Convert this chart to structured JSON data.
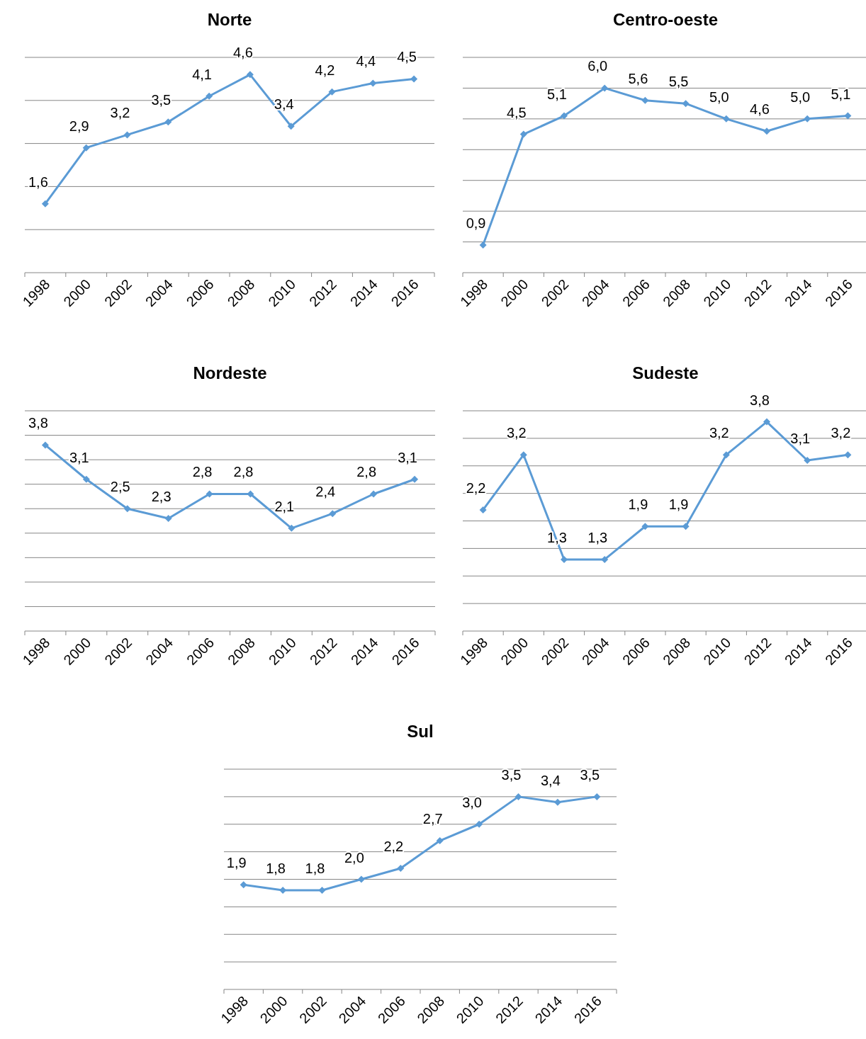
{
  "chart_data": [
    {
      "type": "line",
      "title": "Norte",
      "categories": [
        "1998",
        "2000",
        "2002",
        "2004",
        "2006",
        "2008",
        "2010",
        "2012",
        "2014",
        "2016"
      ],
      "values": [
        1.6,
        2.9,
        3.2,
        3.5,
        4.1,
        4.6,
        3.4,
        4.2,
        4.4,
        4.5
      ],
      "value_labels": [
        "1,6",
        "2,9",
        "3,2",
        "3,5",
        "4,1",
        "4,6",
        "3,4",
        "4,2",
        "4,4",
        "4,5"
      ],
      "color": "#5b9bd5",
      "marker": "diamond",
      "ylim": [
        0,
        5
      ],
      "yticks": [
        {
          "value": 0,
          "label": null
        },
        {
          "value": 1,
          "label": null
        },
        {
          "value": 2,
          "label": null
        },
        {
          "value": 3,
          "label": null
        },
        {
          "value": 4,
          "label": null
        },
        {
          "value": 5,
          "label": null
        }
      ],
      "grid": "y",
      "tick_labels": "x"
    },
    {
      "type": "line",
      "title": "Centro-oeste",
      "categories": [
        "1998",
        "2000",
        "2002",
        "2004",
        "2006",
        "2008",
        "2010",
        "2012",
        "2014",
        "2016"
      ],
      "values": [
        0.9,
        4.5,
        5.1,
        6.0,
        5.6,
        5.5,
        5.0,
        4.6,
        5.0,
        5.1
      ],
      "value_labels": [
        "0,9",
        "4,5",
        "5,1",
        "6,0",
        "5,6",
        "5,5",
        "5,0",
        "4,6",
        "5,0",
        "5,1"
      ],
      "color": "#5b9bd5",
      "marker": "diamond",
      "ylim": [
        0,
        7
      ],
      "yticks": [
        {
          "value": 0,
          "label": null
        },
        {
          "value": 1,
          "label": null
        },
        {
          "value": 2,
          "label": null
        },
        {
          "value": 3,
          "label": null
        },
        {
          "value": 4,
          "label": null
        },
        {
          "value": 5,
          "label": null
        },
        {
          "value": 6,
          "label": null
        },
        {
          "value": 7,
          "label": null
        }
      ],
      "grid": "y",
      "tick_labels": "x"
    },
    {
      "type": "line",
      "title": "Nordeste",
      "categories": [
        "1998",
        "2000",
        "2002",
        "2004",
        "2006",
        "2008",
        "2010",
        "2012",
        "2014",
        "2016"
      ],
      "values": [
        3.8,
        3.1,
        2.5,
        2.3,
        2.8,
        2.8,
        2.1,
        2.4,
        2.8,
        3.1
      ],
      "value_labels": [
        "3,8",
        "3,1",
        "2,5",
        "2,3",
        "2,8",
        "2,8",
        "2,1",
        "2,4",
        "2,8",
        "3,1"
      ],
      "color": "#5b9bd5",
      "marker": "diamond",
      "ylim": [
        0,
        4.5
      ],
      "yticks": [
        {
          "value": 0,
          "label": null
        },
        {
          "value": 0.5,
          "label": null
        },
        {
          "value": 1,
          "label": null
        },
        {
          "value": 1.5,
          "label": null
        },
        {
          "value": 2,
          "label": null
        },
        {
          "value": 2.5,
          "label": null
        },
        {
          "value": 3,
          "label": null
        },
        {
          "value": 3.5,
          "label": null
        },
        {
          "value": 4,
          "label": null
        },
        {
          "value": 4.5,
          "label": null
        }
      ],
      "grid": "y",
      "tick_labels": "x"
    },
    {
      "type": "line",
      "title": "Sudeste",
      "categories": [
        "1998",
        "2000",
        "2002",
        "2004",
        "2006",
        "2008",
        "2010",
        "2012",
        "2014",
        "2016"
      ],
      "values": [
        2.2,
        3.2,
        1.3,
        1.3,
        1.9,
        1.9,
        3.2,
        3.8,
        3.1,
        3.2
      ],
      "value_labels": [
        "2,2",
        "3,2",
        "1,3",
        "1,3",
        "1,9",
        "1,9",
        "3,2",
        "3,8",
        "3,1",
        "3,2"
      ],
      "color": "#5b9bd5",
      "marker": "diamond",
      "ylim": [
        0,
        4
      ],
      "yticks": [
        {
          "value": 0,
          "label": null
        },
        {
          "value": 0.5,
          "label": null
        },
        {
          "value": 1,
          "label": null
        },
        {
          "value": 1.5,
          "label": null
        },
        {
          "value": 2,
          "label": null
        },
        {
          "value": 2.5,
          "label": null
        },
        {
          "value": 3,
          "label": null
        },
        {
          "value": 3.5,
          "label": null
        },
        {
          "value": 4,
          "label": null
        }
      ],
      "grid": "y",
      "tick_labels": "x"
    },
    {
      "type": "line",
      "title": "Sul",
      "categories": [
        "1998",
        "2000",
        "2002",
        "2004",
        "2006",
        "2008",
        "2010",
        "2012",
        "2014",
        "2016"
      ],
      "values": [
        1.9,
        1.8,
        1.8,
        2.0,
        2.2,
        2.7,
        3.0,
        3.5,
        3.4,
        3.5
      ],
      "value_labels": [
        "1,9",
        "1,8",
        "1,8",
        "2,0",
        "2,2",
        "2,7",
        "3,0",
        "3,5",
        "3,4",
        "3,5"
      ],
      "color": "#5b9bd5",
      "marker": "diamond",
      "ylim": [
        0,
        4
      ],
      "yticks": [
        {
          "value": 0,
          "label": null
        },
        {
          "value": 0.5,
          "label": null
        },
        {
          "value": 1,
          "label": null
        },
        {
          "value": 1.5,
          "label": null
        },
        {
          "value": 2,
          "label": null
        },
        {
          "value": 2.5,
          "label": null
        },
        {
          "value": 3,
          "label": null
        },
        {
          "value": 3.5,
          "label": null
        },
        {
          "value": 4,
          "label": null
        }
      ],
      "grid": "y",
      "tick_labels": "x"
    }
  ]
}
